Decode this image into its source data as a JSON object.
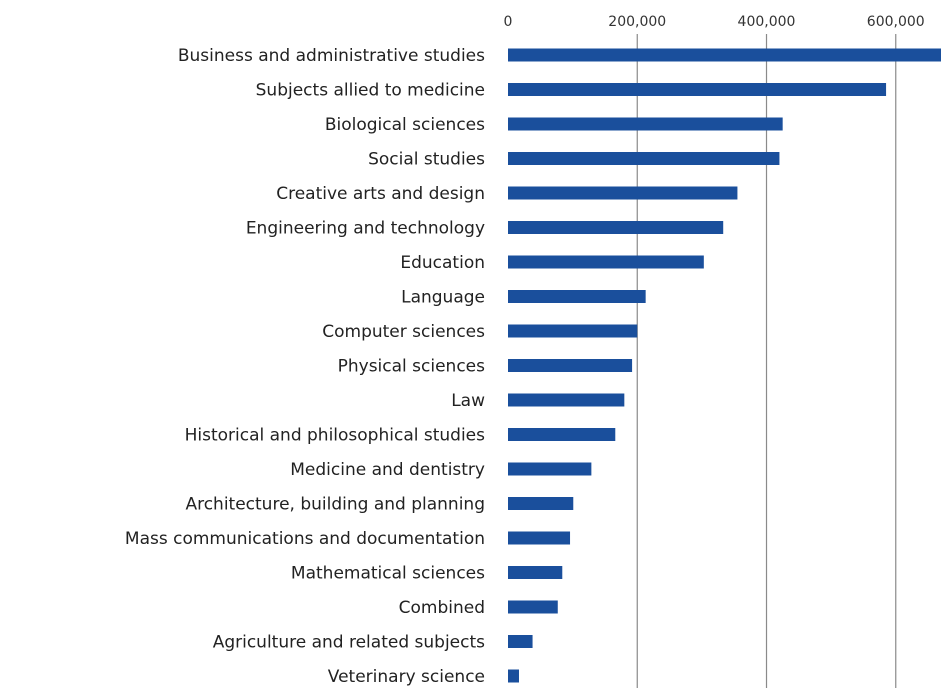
{
  "colors": {
    "bar": "#1a4f9c",
    "grid": "#8a8a8a",
    "text": "#222222",
    "background": "#ffffff"
  },
  "chart_data": {
    "type": "bar",
    "orientation": "horizontal",
    "title": "",
    "xlabel": "",
    "ylabel": "",
    "xlim": [
      0,
      670000
    ],
    "grid": true,
    "legend": "none",
    "x_ticks": [
      0,
      200000,
      400000,
      600000
    ],
    "x_tick_labels": [
      "0",
      "200,000",
      "400,000",
      "600,000"
    ],
    "categories": [
      "Business and administrative studies",
      "Subjects allied to medicine",
      "Biological sciences",
      "Social studies",
      "Creative arts and design",
      "Engineering and technology",
      "Education ",
      "Language",
      "Computer sciences",
      "Physical sciences",
      "Law",
      "Historical and philosophical studies",
      "Medicine and dentistry",
      "Architecture, building and planning",
      "Mass communications and documentation",
      "Mathematical sciences",
      "Combined",
      "Agriculture and related subjects",
      "Veterinary science"
    ],
    "values": [
      670000,
      585000,
      425000,
      420000,
      355000,
      333000,
      303000,
      213000,
      200000,
      192000,
      180000,
      166000,
      129000,
      101000,
      96000,
      84000,
      77000,
      38000,
      17000
    ]
  }
}
